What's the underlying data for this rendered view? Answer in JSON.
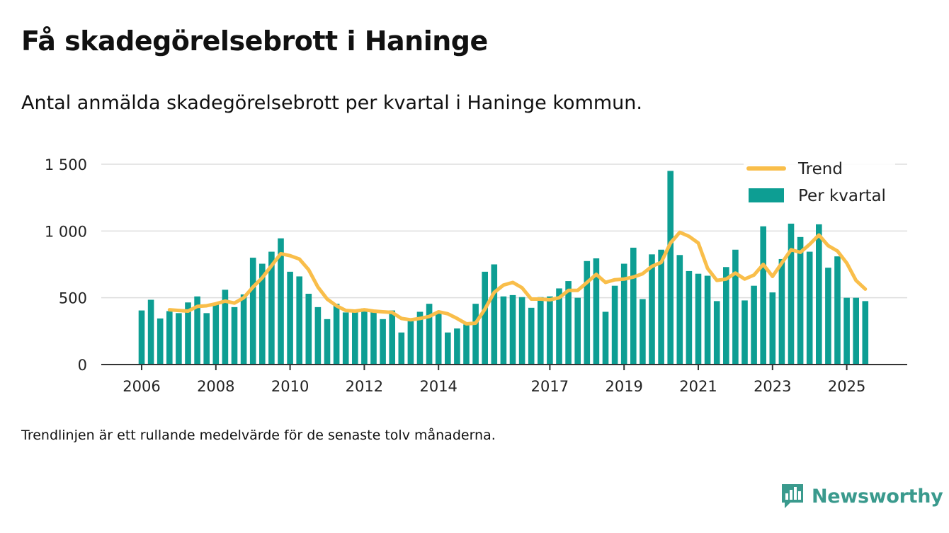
{
  "chart_data": {
    "type": "bar",
    "title": "Få skadegörelsebrott i Haninge",
    "subtitle": "Antal anmälda skadegörelsebrott per kvartal i Haninge kommun.",
    "footnote": "Trendlinjen är ett rullande medelvärde för de senaste tolv månaderna.",
    "xlabel": "",
    "ylabel": "",
    "ylim": [
      0,
      1500
    ],
    "yticks": [
      0,
      500,
      1000,
      1500
    ],
    "ytick_labels": [
      "0",
      "500",
      "1 000",
      "1 500"
    ],
    "xtick_labels": [
      "2006",
      "2008",
      "2010",
      "2012",
      "2014",
      "2017",
      "2019",
      "2021",
      "2023",
      "2025"
    ],
    "xtick_quarter_index": [
      0,
      8,
      16,
      24,
      32,
      44,
      52,
      60,
      68,
      76
    ],
    "grid": true,
    "legend_position": "top-right",
    "legend": [
      {
        "name": "Trend",
        "kind": "line",
        "color": "#f9be4a"
      },
      {
        "name": "Per kvartal",
        "kind": "bar",
        "color": "#0d9e93"
      }
    ],
    "colors": {
      "bar": "#0d9e93",
      "trend": "#f9be4a",
      "grid": "#dddddd",
      "axis": "#333333"
    },
    "series": [
      {
        "name": "Per kvartal",
        "values": [
          405,
          485,
          345,
          400,
          385,
          465,
          510,
          385,
          455,
          560,
          430,
          525,
          800,
          755,
          845,
          945,
          695,
          660,
          530,
          430,
          340,
          455,
          390,
          395,
          420,
          400,
          340,
          405,
          240,
          325,
          395,
          455,
          395,
          240,
          270,
          300,
          455,
          695,
          750,
          510,
          520,
          505,
          425,
          505,
          510,
          570,
          625,
          500,
          775,
          795,
          395,
          590,
          755,
          875,
          490,
          825,
          860,
          1450,
          820,
          700,
          680,
          665,
          475,
          730,
          860,
          480,
          590,
          1035,
          540,
          790,
          1055,
          955,
          845,
          1050,
          725,
          810,
          500,
          500,
          475
        ]
      },
      {
        "name": "Trend",
        "start_index": 3,
        "values": [
          410,
          405,
          400,
          435,
          440,
          455,
          475,
          460,
          500,
          580,
          650,
          740,
          830,
          815,
          790,
          710,
          580,
          490,
          440,
          405,
          400,
          410,
          400,
          395,
          390,
          345,
          335,
          345,
          360,
          395,
          380,
          345,
          305,
          310,
          415,
          540,
          595,
          615,
          575,
          490,
          490,
          485,
          500,
          555,
          555,
          615,
          675,
          615,
          635,
          640,
          655,
          680,
          735,
          765,
          910,
          990,
          960,
          910,
          720,
          630,
          640,
          685,
          640,
          670,
          750,
          660,
          760,
          860,
          840,
          900,
          970,
          890,
          850,
          760,
          630,
          565
        ]
      }
    ]
  },
  "brand": {
    "name": "Newsworthy",
    "icon": "newsworthy-bar-chart-icon"
  }
}
